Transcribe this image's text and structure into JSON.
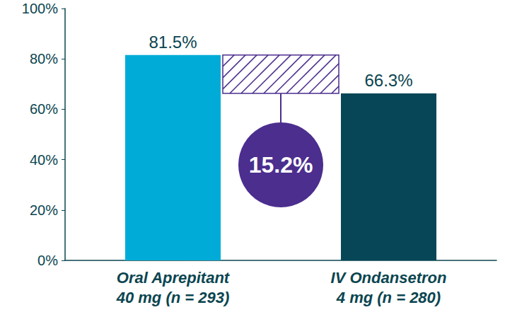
{
  "chart_data": {
    "type": "bar",
    "categories": [
      "Oral Aprepitant\n40 mg (n = 293)",
      "IV Ondansetron\n4 mg (n = 280)"
    ],
    "values": [
      81.5,
      66.3
    ],
    "value_labels": [
      "81.5%",
      "66.3%"
    ],
    "colors": [
      "#00acd7",
      "#064656"
    ],
    "data_labels": true,
    "ylim": [
      0,
      100
    ],
    "yticks": [
      {
        "value": 0,
        "label": "0%"
      },
      {
        "value": 20,
        "label": "20%"
      },
      {
        "value": 40,
        "label": "40%"
      },
      {
        "value": 60,
        "label": "60%"
      },
      {
        "value": 80,
        "label": "80%"
      },
      {
        "value": 100,
        "label": "100%"
      }
    ],
    "grid": false,
    "annotation": {
      "value": 15.2,
      "label": "15.2%"
    }
  }
}
